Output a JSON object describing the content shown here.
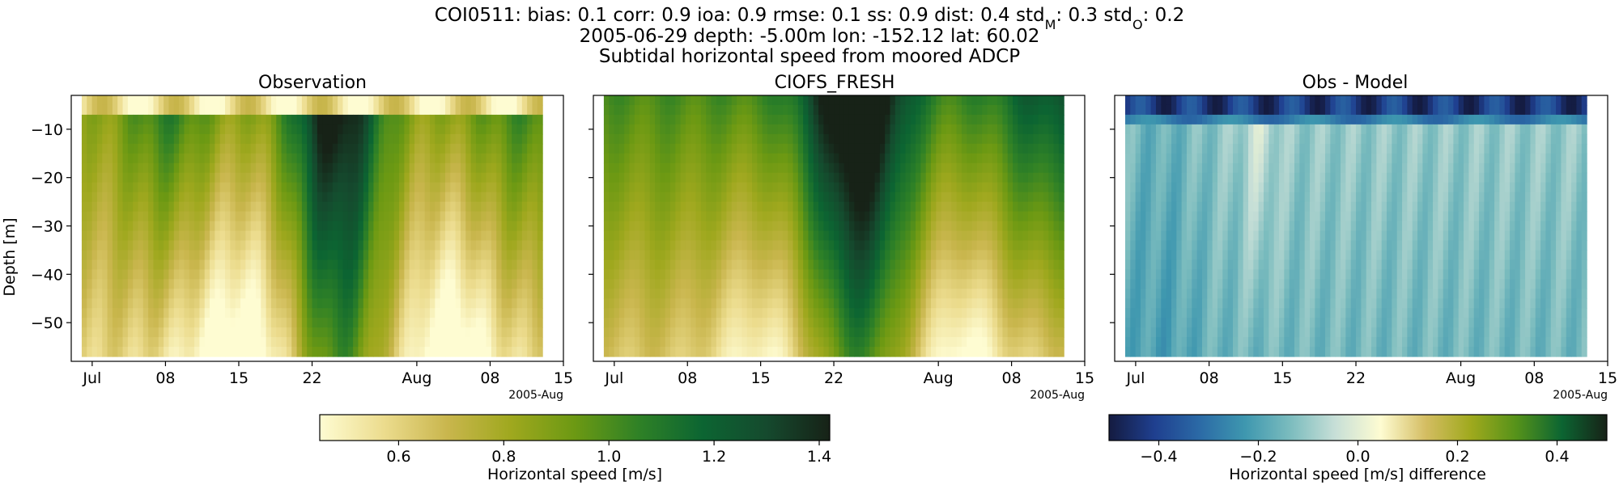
{
  "header": {
    "line1_parts": [
      {
        "t": "COI0511: bias: 0.1  corr: 0.9  ioa: 0.9  rmse: 0.1  ss: 0.9  dist: 0.4  std"
      },
      {
        "t": "M",
        "sub": true
      },
      {
        "t": ": 0.3  std"
      },
      {
        "t": "O",
        "sub": true
      },
      {
        "t": ": 0.2"
      }
    ],
    "line1_text": "COI0511: bias: 0.1  corr: 0.9  ioa: 0.9  rmse: 0.1  ss: 0.9  dist: 0.4  stdM: 0.3  stdO: 0.2",
    "line2": "2005-06-29 depth: -5.00m lon: -152.12 lat: 60.02",
    "line3": "Subtidal horizontal speed from moored ADCP"
  },
  "chart_data": [
    {
      "type": "heatmap",
      "title": "Observation",
      "ylabel": "Depth [m]",
      "xlabel": "",
      "x_start": "2005-06-30",
      "x_end": "2005-08-13",
      "xlim": [
        "2005-06-29",
        "2005-08-15"
      ],
      "ylim": [
        -58,
        -3
      ],
      "depth_range": [
        -57,
        -4
      ],
      "x_tick_labels": [
        "Jul",
        "08",
        "15",
        "22",
        "Aug",
        "08",
        "15"
      ],
      "x_offset_label": "2005-Aug",
      "y_ticks": [
        -10,
        -20,
        -30,
        -40,
        -50
      ],
      "colorscale": "speed",
      "value_range": [
        0.45,
        1.42
      ],
      "colorbar": {
        "label": "Horizontal speed [m/s]",
        "ticks": [
          "0.6",
          "0.8",
          "1.0",
          "1.2",
          "1.4"
        ]
      }
    },
    {
      "type": "heatmap",
      "title": "CIOFS_FRESH",
      "ylabel": "",
      "xlabel": "",
      "x_start": "2005-06-30",
      "x_end": "2005-08-13",
      "xlim": [
        "2005-06-29",
        "2005-08-15"
      ],
      "ylim": [
        -58,
        -3
      ],
      "depth_range": [
        -57,
        -4
      ],
      "x_tick_labels": [
        "Jul",
        "08",
        "15",
        "22",
        "Aug",
        "08",
        "15"
      ],
      "x_offset_label": "2005-Aug",
      "colorscale": "speed",
      "value_range": [
        0.45,
        1.42
      ]
    },
    {
      "type": "heatmap",
      "title": "Obs - Model",
      "ylabel": "",
      "xlabel": "",
      "x_start": "2005-06-30",
      "x_end": "2005-08-13",
      "xlim": [
        "2005-06-29",
        "2005-08-15"
      ],
      "ylim": [
        -58,
        -3
      ],
      "depth_range": [
        -57,
        -4
      ],
      "x_tick_labels": [
        "Jul",
        "08",
        "15",
        "22",
        "Aug",
        "08",
        "15"
      ],
      "x_offset_label": "2005-Aug",
      "colorscale": "diff",
      "value_range": [
        -0.5,
        0.5
      ],
      "colorbar": {
        "label": "Horizontal speed [m/s] difference",
        "ticks": [
          "−0.4",
          "−0.2",
          "0.0",
          "0.2",
          "0.4"
        ]
      }
    }
  ],
  "colors": {
    "speed": [
      "#fefcd2",
      "#ecdc8e",
      "#c9b64d",
      "#9fa81e",
      "#6c9913",
      "#2f8126",
      "#0c6532",
      "#154a2e",
      "#172217"
    ],
    "diff": [
      "#141b40",
      "#1f3f8f",
      "#2b6aa6",
      "#3e97af",
      "#7bbcbe",
      "#c7dfd7",
      "#fefcd2",
      "#d4bd62",
      "#9fa91d",
      "#55921a",
      "#0c6532",
      "#172217"
    ]
  }
}
